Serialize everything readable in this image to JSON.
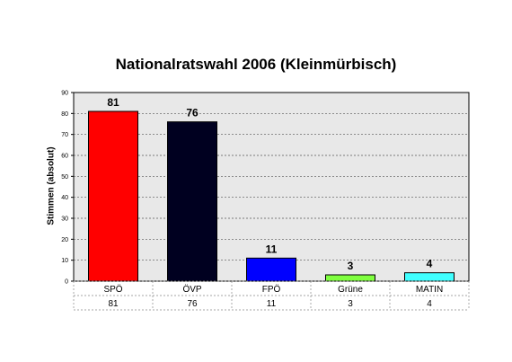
{
  "chart_data": {
    "type": "bar",
    "title": "Nationalratswahl 2006 (Kleinmürbisch)",
    "ylabel": "Stimmen (absolut)",
    "xlabel": "",
    "ylim": [
      0,
      90
    ],
    "yticks": [
      0,
      10,
      20,
      30,
      40,
      50,
      60,
      70,
      80,
      90
    ],
    "grid": true,
    "categories": [
      "SPÖ",
      "ÖVP",
      "FPÖ",
      "Grüne",
      "MATIN"
    ],
    "values": [
      81,
      76,
      11,
      3,
      4
    ],
    "colors": [
      "#ff0000",
      "#000020",
      "#0000ff",
      "#80ff40",
      "#40ffff"
    ],
    "data_table": [
      "81",
      "76",
      "11",
      "3",
      "4"
    ]
  }
}
